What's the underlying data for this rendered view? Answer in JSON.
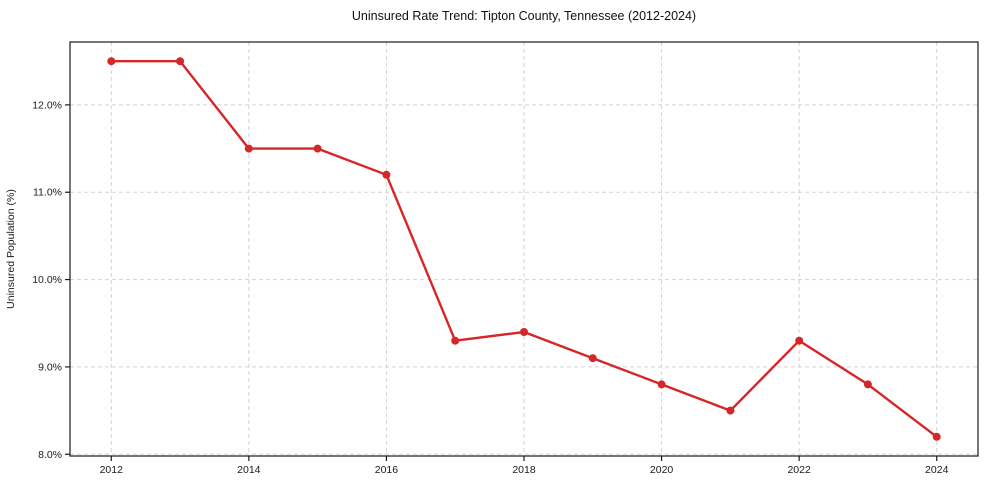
{
  "chart_data": {
    "type": "line",
    "title": "Uninsured Rate Trend: Tipton County, Tennessee (2012-2024)",
    "xlabel": "",
    "ylabel": "Uninsured Population (%)",
    "x": [
      2012,
      2013,
      2014,
      2015,
      2016,
      2017,
      2018,
      2019,
      2020,
      2021,
      2022,
      2023,
      2024
    ],
    "values": [
      12.5,
      12.5,
      11.5,
      11.5,
      11.2,
      9.3,
      9.4,
      9.1,
      8.8,
      8.5,
      9.3,
      8.8,
      8.2
    ],
    "xticks": [
      2012,
      2014,
      2016,
      2018,
      2020,
      2022,
      2024
    ],
    "xtick_labels": [
      "2012",
      "2014",
      "2016",
      "2018",
      "2020",
      "2022",
      "2024"
    ],
    "yticks": [
      8,
      9,
      10,
      11,
      12
    ],
    "ytick_labels": [
      "8.0%",
      "9.0%",
      "10.0%",
      "11.0%",
      "12.0%"
    ],
    "xlim": [
      2011.4,
      2024.6
    ],
    "ylim": [
      7.98,
      12.72
    ],
    "grid": true,
    "grid_style": "dashed",
    "legend": "none",
    "line_color": "#d62728",
    "grid_color": "#d3d3d3",
    "spine_color": "#1a1a1a",
    "marker": "circle"
  }
}
